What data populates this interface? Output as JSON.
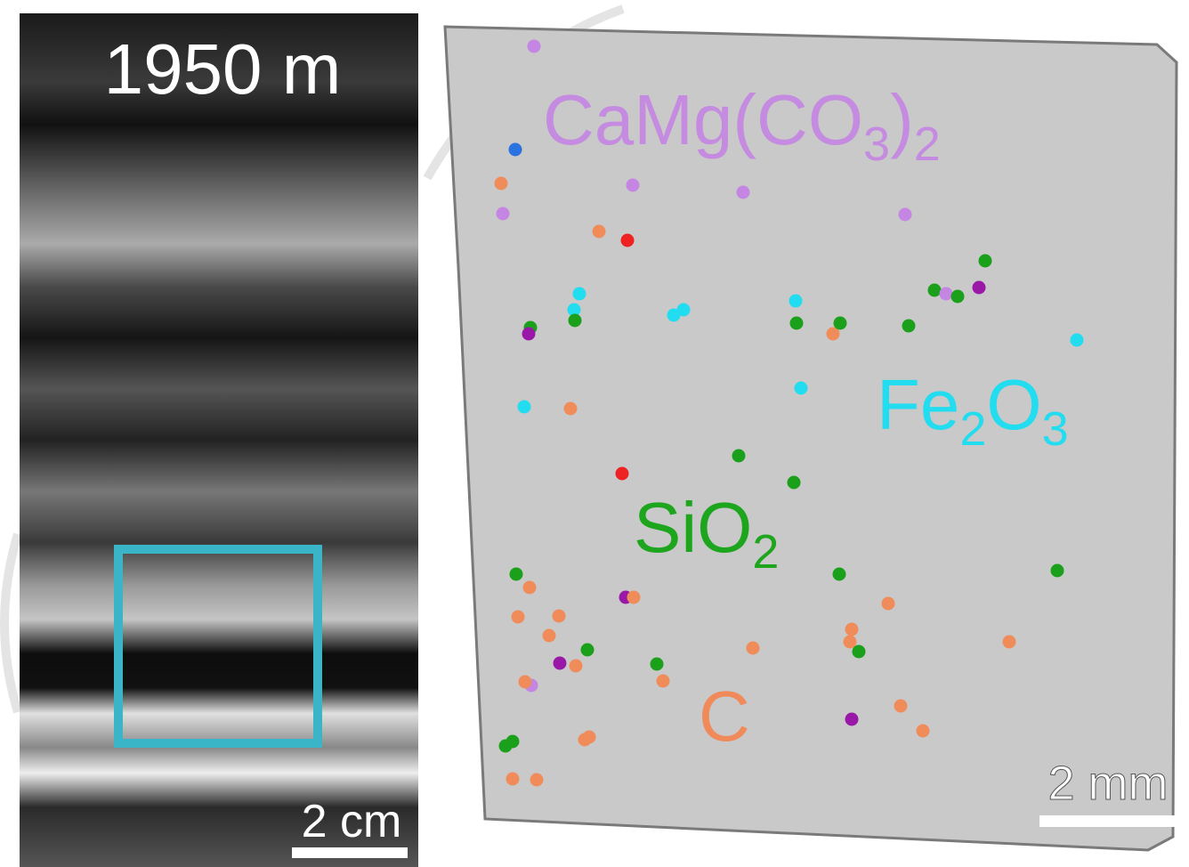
{
  "left_panel": {
    "depth_label": "1950 m",
    "scale_label": "2 cm"
  },
  "right_panel": {
    "scale_label": "2 mm",
    "labels": {
      "dolomite": [
        "CaMg(CO",
        "3",
        ")",
        "2"
      ],
      "hematite": [
        "Fe",
        "2",
        "O",
        "3"
      ],
      "quartz": [
        "SiO",
        "2"
      ],
      "carbon": "C"
    }
  }
}
